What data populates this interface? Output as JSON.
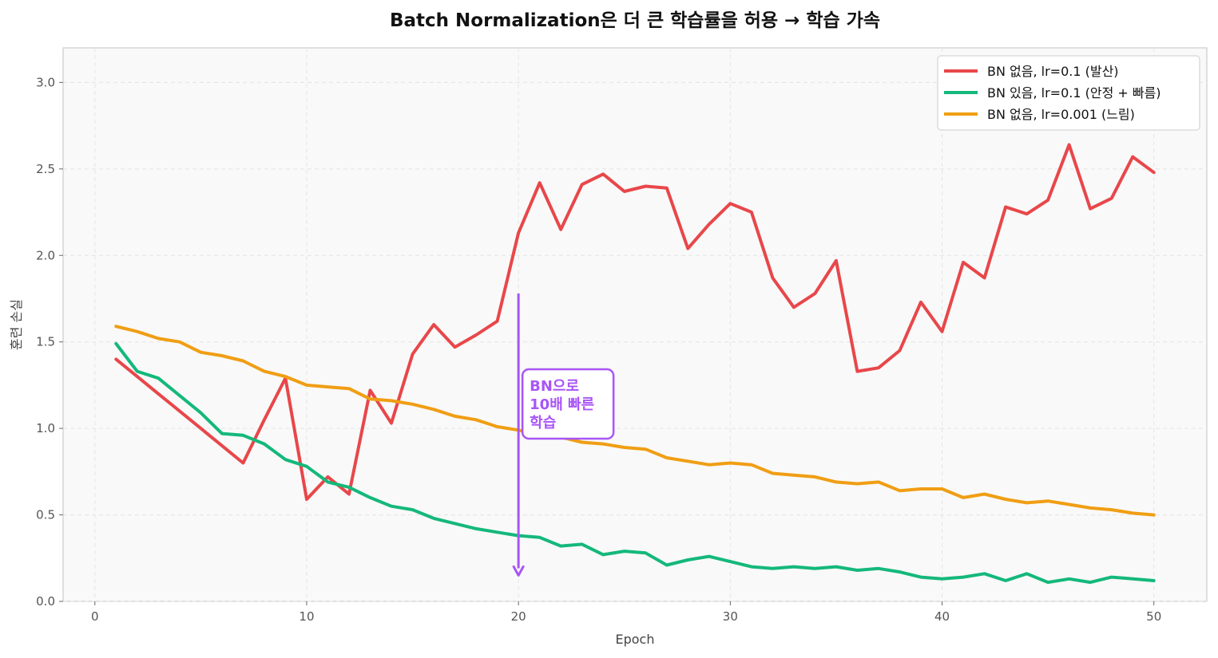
{
  "chart_data": {
    "type": "line",
    "title": "Batch Normalization은 더 큰 학습률을 허용 → 학습 가속",
    "xlabel": "Epoch",
    "ylabel": "훈련 손실",
    "xlim": [
      -1.5,
      52.5
    ],
    "ylim": [
      0,
      3.2
    ],
    "xticks": [
      0,
      10,
      20,
      30,
      40,
      50
    ],
    "yticks": [
      0.0,
      0.5,
      1.0,
      1.5,
      2.0,
      2.5,
      3.0
    ],
    "xtick_labels": [
      "0",
      "10",
      "20",
      "30",
      "40",
      "50"
    ],
    "ytick_labels": [
      "0.0",
      "0.5",
      "1.0",
      "1.5",
      "2.0",
      "2.5",
      "3.0"
    ],
    "grid": true,
    "legend_position": "top-right",
    "x": [
      1,
      2,
      3,
      4,
      5,
      6,
      7,
      8,
      9,
      10,
      11,
      12,
      13,
      14,
      15,
      16,
      17,
      18,
      19,
      20,
      21,
      22,
      23,
      24,
      25,
      26,
      27,
      28,
      29,
      30,
      31,
      32,
      33,
      34,
      35,
      36,
      37,
      38,
      39,
      40,
      41,
      42,
      43,
      44,
      45,
      46,
      47,
      48,
      49,
      50
    ],
    "series": [
      {
        "name": "BN 없음, lr=0.1 (발산)",
        "color": "#e8474a",
        "values": [
          1.4,
          1.3,
          1.2,
          1.1,
          1.0,
          0.9,
          0.8,
          1.05,
          1.29,
          0.59,
          0.72,
          0.62,
          1.22,
          1.03,
          1.43,
          1.6,
          1.47,
          1.54,
          1.62,
          2.13,
          2.42,
          2.15,
          2.41,
          2.47,
          2.37,
          2.4,
          2.39,
          2.04,
          2.18,
          2.3,
          2.25,
          1.87,
          1.7,
          1.78,
          1.97,
          1.33,
          1.35,
          1.45,
          1.73,
          1.56,
          1.96,
          1.87,
          2.28,
          2.24,
          2.32,
          2.64,
          2.27,
          2.33,
          2.57,
          2.48
        ]
      },
      {
        "name": "BN 있음, lr=0.1 (안정 + 빠름)",
        "color": "#14b87b",
        "values": [
          1.49,
          1.33,
          1.29,
          1.19,
          1.09,
          0.97,
          0.96,
          0.91,
          0.82,
          0.78,
          0.69,
          0.66,
          0.6,
          0.55,
          0.53,
          0.48,
          0.45,
          0.42,
          0.4,
          0.38,
          0.37,
          0.32,
          0.33,
          0.27,
          0.29,
          0.28,
          0.21,
          0.24,
          0.26,
          0.23,
          0.2,
          0.19,
          0.2,
          0.19,
          0.2,
          0.18,
          0.19,
          0.17,
          0.14,
          0.13,
          0.14,
          0.16,
          0.12,
          0.16,
          0.11,
          0.13,
          0.11,
          0.14,
          0.13,
          0.12
        ]
      },
      {
        "name": "BN 없음, lr=0.001 (느림)",
        "color": "#f09e14",
        "values": [
          1.59,
          1.56,
          1.52,
          1.5,
          1.44,
          1.42,
          1.39,
          1.33,
          1.3,
          1.25,
          1.24,
          1.23,
          1.17,
          1.16,
          1.14,
          1.11,
          1.07,
          1.05,
          1.01,
          0.99,
          0.96,
          0.95,
          0.92,
          0.91,
          0.89,
          0.88,
          0.83,
          0.81,
          0.79,
          0.8,
          0.79,
          0.74,
          0.73,
          0.72,
          0.69,
          0.68,
          0.69,
          0.64,
          0.65,
          0.65,
          0.6,
          0.62,
          0.59,
          0.57,
          0.58,
          0.56,
          0.54,
          0.53,
          0.51,
          0.5
        ]
      }
    ],
    "annotation": {
      "text_lines": [
        "BN으로",
        "10배 빠른",
        "학습"
      ],
      "color": "#a855f7",
      "arrow_x": 20,
      "arrow_y_start": 1.78,
      "arrow_y_end": 0.15
    }
  }
}
